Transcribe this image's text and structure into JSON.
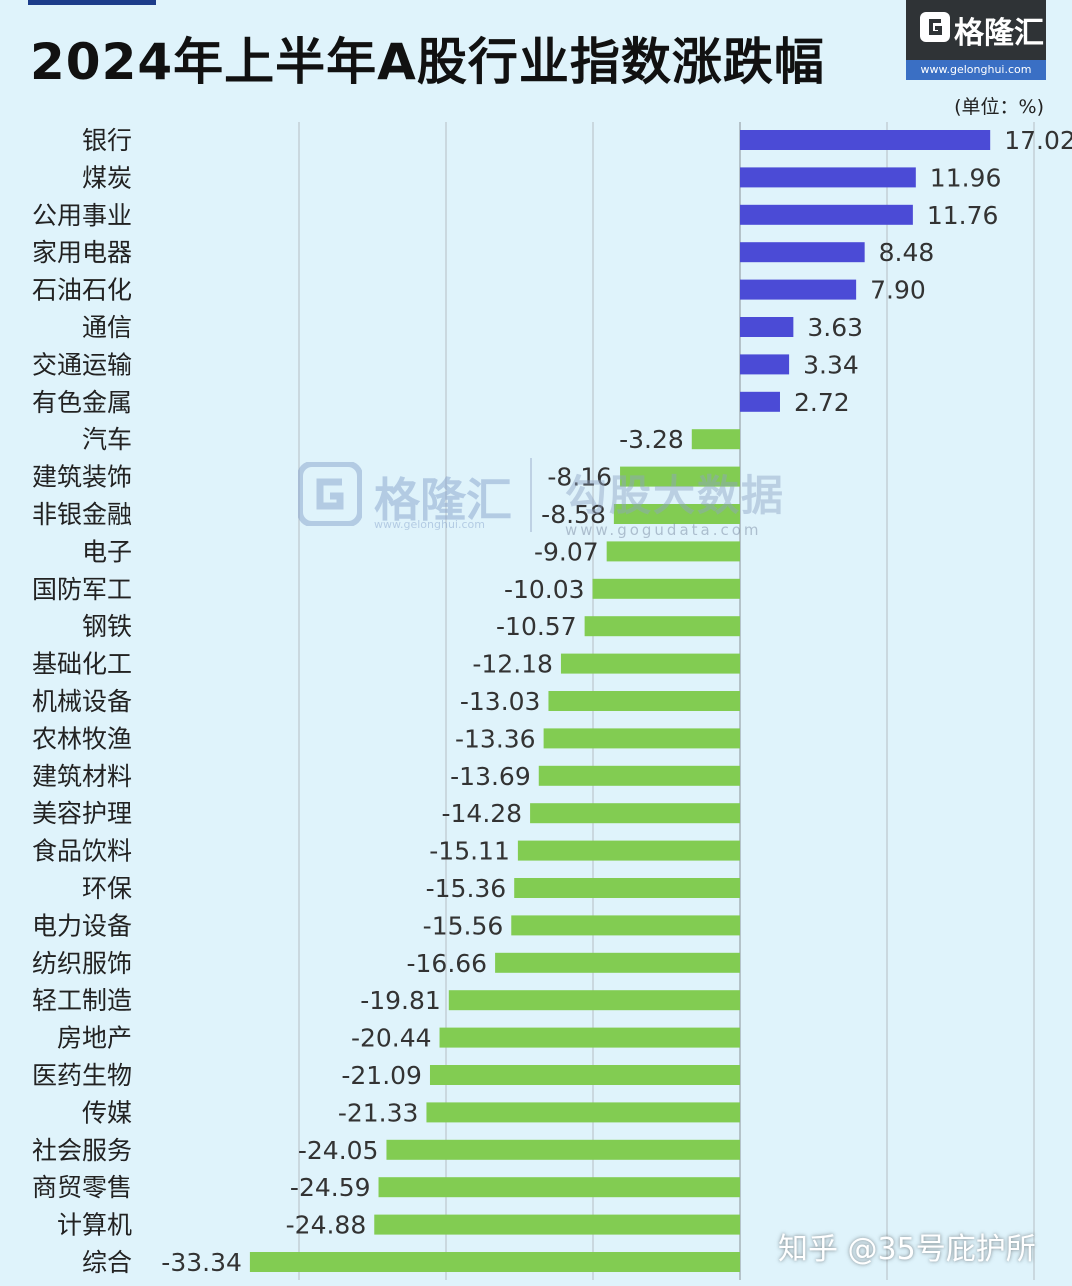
{
  "header": {
    "title": "2024年上半年A股行业指数涨跌幅",
    "unit": "(单位：%)"
  },
  "logo": {
    "name": "格隆汇",
    "url": "www.gelonghui.com"
  },
  "watermarks": {
    "primary_name": "格隆汇",
    "primary_url": "www.gelonghui.com",
    "secondary_name": "勾股大数据",
    "secondary_url": "www.gogudata.com"
  },
  "credit": "知乎 @35号庇护所",
  "colors": {
    "positive": "#4b4bd6",
    "negative": "#82cc52",
    "background": "#dff3fb",
    "gridline": "#c3d0d6"
  },
  "chart_data": {
    "type": "bar",
    "orientation": "horizontal",
    "title": "2024年上半年A股行业指数涨跌幅",
    "unit": "%",
    "xlim": [
      -35,
      20
    ],
    "grid": true,
    "categories": [
      "银行",
      "煤炭",
      "公用事业",
      "家用电器",
      "石油石化",
      "通信",
      "交通运输",
      "有色金属",
      "汽车",
      "建筑装饰",
      "非银金融",
      "电子",
      "国防军工",
      "钢铁",
      "基础化工",
      "机械设备",
      "农林牧渔",
      "建筑材料",
      "美容护理",
      "食品饮料",
      "环保",
      "电力设备",
      "纺织服饰",
      "轻工制造",
      "房地产",
      "医药生物",
      "传媒",
      "社会服务",
      "商贸零售",
      "计算机",
      "综合"
    ],
    "values": [
      17.02,
      11.96,
      11.76,
      8.48,
      7.9,
      3.63,
      3.34,
      2.72,
      -3.28,
      -8.16,
      -8.58,
      -9.07,
      -10.03,
      -10.57,
      -12.18,
      -13.03,
      -13.36,
      -13.69,
      -14.28,
      -15.11,
      -15.36,
      -15.56,
      -16.66,
      -19.81,
      -20.44,
      -21.09,
      -21.33,
      -24.05,
      -24.59,
      -24.88,
      -33.34
    ],
    "value_labels": [
      "17.02",
      "11.96",
      "11.76",
      "8.48",
      "7.90",
      "3.63",
      "3.34",
      "2.72",
      "-3.28",
      "-8.16",
      "-8.58",
      "-9.07",
      "-10.03",
      "-10.57",
      "-12.18",
      "-13.03",
      "-13.36",
      "-13.69",
      "-14.28",
      "-15.11",
      "-15.36",
      "-15.56",
      "-16.66",
      "-19.81",
      "-20.44",
      "-21.09",
      "-21.33",
      "-24.05",
      "-24.59",
      "-24.88",
      "-33.34"
    ]
  }
}
